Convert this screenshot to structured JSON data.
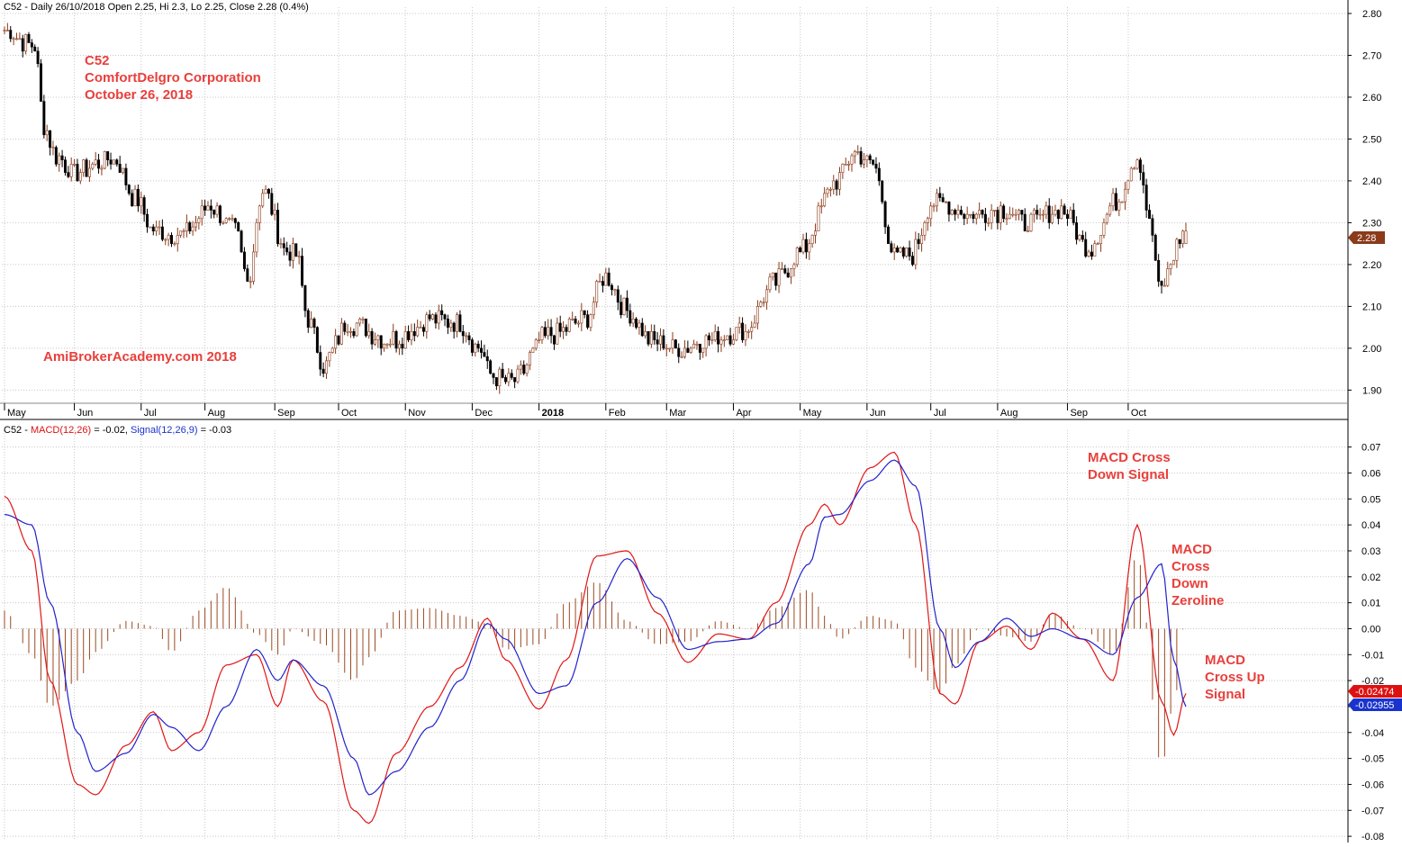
{
  "price_header": {
    "symbol": "C52",
    "text": "C52 - Daily 26/10/2018 Open 2.25, Hi 2.3, Lo 2.25, Close 2.28 (0.4%)"
  },
  "macd_header": {
    "prefix": "C52 - ",
    "macd_label": "MACD(12,26)",
    "macd_value": " = -0.02, ",
    "signal_label": "Signal(12,26,9)",
    "signal_value": " = -0.03"
  },
  "annotations": {
    "title_lines": [
      "C52",
      "ComfortDelgro Corporation",
      "October 26, 2018"
    ],
    "watermark": "AmiBrokerAcademy.com  2018",
    "cross_down_signal": [
      "MACD Cross",
      "Down Signal"
    ],
    "cross_down_zeroline": [
      "MACD",
      "Cross",
      "Down",
      "Zeroline"
    ],
    "cross_up_signal": [
      "MACD",
      "Cross Up",
      "Signal"
    ]
  },
  "price_badge": "2.28",
  "macd_badge": "-0.02474",
  "signal_badge": "-0.02955",
  "colors": {
    "annotation": "#e8403c",
    "macd_line": "#e01515",
    "signal_line": "#2222cc",
    "candle": "#8b3a1a",
    "histogram": "#9b4a22",
    "price_badge_bg": "#8b3a1a",
    "macd_badge_bg": "#dd1111",
    "signal_badge_bg": "#1a33cc"
  },
  "chart_data": [
    {
      "type": "candlestick",
      "title": "C52 - Daily 26/10/2018",
      "x_ticks": [
        "May",
        "Jun",
        "Jul",
        "Aug",
        "Sep",
        "Oct",
        "Nov",
        "Dec",
        "2018",
        "Feb",
        "Mar",
        "Apr",
        "May",
        "Jun",
        "Jul",
        "Aug",
        "Sep",
        "Oct"
      ],
      "y_ticks": [
        "1.90",
        "2.00",
        "2.10",
        "2.20",
        "2.30",
        "2.40",
        "2.50",
        "2.60",
        "2.70",
        "2.80"
      ],
      "ylim": [
        1.875,
        2.815
      ],
      "close_path": {
        "description": "approximate closing price at key dates",
        "points": [
          {
            "date": "2017-05-02",
            "close": 2.76
          },
          {
            "date": "2017-05-10",
            "close": 2.73
          },
          {
            "date": "2017-05-15",
            "close": 2.72
          },
          {
            "date": "2017-05-18",
            "close": 2.53
          },
          {
            "date": "2017-05-24",
            "close": 2.46
          },
          {
            "date": "2017-06-01",
            "close": 2.42
          },
          {
            "date": "2017-06-20",
            "close": 2.45
          },
          {
            "date": "2017-06-30",
            "close": 2.35
          },
          {
            "date": "2017-07-07",
            "close": 2.28
          },
          {
            "date": "2017-07-20",
            "close": 2.27
          },
          {
            "date": "2017-08-03",
            "close": 2.34
          },
          {
            "date": "2017-08-15",
            "close": 2.28
          },
          {
            "date": "2017-08-21",
            "close": 2.16
          },
          {
            "date": "2017-08-28",
            "close": 2.38
          },
          {
            "date": "2017-09-07",
            "close": 2.23
          },
          {
            "date": "2017-09-12",
            "close": 2.22
          },
          {
            "date": "2017-09-18",
            "close": 2.07
          },
          {
            "date": "2017-09-25",
            "close": 1.96
          },
          {
            "date": "2017-10-05",
            "close": 2.06
          },
          {
            "date": "2017-10-25",
            "close": 2.02
          },
          {
            "date": "2017-11-15",
            "close": 2.07
          },
          {
            "date": "2017-11-27",
            "close": 2.06
          },
          {
            "date": "2017-12-05",
            "close": 2.0
          },
          {
            "date": "2017-12-12",
            "close": 1.93
          },
          {
            "date": "2017-12-20",
            "close": 1.92
          },
          {
            "date": "2018-01-05",
            "close": 2.03
          },
          {
            "date": "2018-01-23",
            "close": 2.07
          },
          {
            "date": "2018-02-01",
            "close": 2.17
          },
          {
            "date": "2018-02-12",
            "close": 2.09
          },
          {
            "date": "2018-02-22",
            "close": 2.02
          },
          {
            "date": "2018-03-07",
            "close": 2.0
          },
          {
            "date": "2018-03-20",
            "close": 2.02
          },
          {
            "date": "2018-04-05",
            "close": 2.04
          },
          {
            "date": "2018-04-20",
            "close": 2.16
          },
          {
            "date": "2018-05-02",
            "close": 2.23
          },
          {
            "date": "2018-05-18",
            "close": 2.4
          },
          {
            "date": "2018-05-28",
            "close": 2.47
          },
          {
            "date": "2018-06-05",
            "close": 2.44
          },
          {
            "date": "2018-06-14",
            "close": 2.22
          },
          {
            "date": "2018-06-21",
            "close": 2.22
          },
          {
            "date": "2018-07-03",
            "close": 2.35
          },
          {
            "date": "2018-07-20",
            "close": 2.32
          },
          {
            "date": "2018-08-03",
            "close": 2.33
          },
          {
            "date": "2018-08-15",
            "close": 2.3
          },
          {
            "date": "2018-08-30",
            "close": 2.33
          },
          {
            "date": "2018-09-12",
            "close": 2.24
          },
          {
            "date": "2018-09-25",
            "close": 2.35
          },
          {
            "date": "2018-10-04",
            "close": 2.46
          },
          {
            "date": "2018-10-11",
            "close": 2.27
          },
          {
            "date": "2018-10-15",
            "close": 2.14
          },
          {
            "date": "2018-10-26",
            "close": 2.28
          }
        ]
      },
      "last_bar": {
        "date": "2018-10-26",
        "open": 2.25,
        "high": 2.3,
        "low": 2.25,
        "close": 2.28,
        "change": "0.4%"
      }
    },
    {
      "type": "line",
      "title": "MACD(12,26) = -0.02, Signal(12,26,9) = -0.03",
      "y_ticks": [
        "-0.08",
        "-0.07",
        "-0.06",
        "-0.05",
        "-0.04",
        "-0.03",
        "-0.02",
        "-0.01",
        "0.00",
        "0.01",
        "0.02",
        "0.03",
        "0.04",
        "0.05",
        "0.06",
        "0.07"
      ],
      "ylim": [
        -0.081,
        0.073
      ],
      "series": [
        {
          "name": "MACD(12,26)",
          "color": "#e01515",
          "points": [
            [
              "2017-05-01",
              0.051
            ],
            [
              "2017-05-12",
              0.03
            ],
            [
              "2017-05-22",
              -0.02
            ],
            [
              "2017-06-02",
              -0.06
            ],
            [
              "2017-06-12",
              -0.064
            ],
            [
              "2017-06-26",
              -0.045
            ],
            [
              "2017-07-07",
              -0.032
            ],
            [
              "2017-07-17",
              -0.047
            ],
            [
              "2017-07-28",
              -0.04
            ],
            [
              "2017-08-10",
              -0.014
            ],
            [
              "2017-08-24",
              -0.01
            ],
            [
              "2017-09-04",
              -0.03
            ],
            [
              "2017-09-11",
              -0.012
            ],
            [
              "2017-09-25",
              -0.028
            ],
            [
              "2017-10-09",
              -0.07
            ],
            [
              "2017-10-16",
              -0.075
            ],
            [
              "2017-10-27",
              -0.048
            ],
            [
              "2017-11-13",
              -0.03
            ],
            [
              "2017-11-27",
              -0.015
            ],
            [
              "2017-12-08",
              0.004
            ],
            [
              "2017-12-18",
              -0.012
            ],
            [
              "2018-01-02",
              -0.031
            ],
            [
              "2018-01-15",
              -0.012
            ],
            [
              "2018-01-29",
              0.028
            ],
            [
              "2018-02-12",
              0.03
            ],
            [
              "2018-02-26",
              0.006
            ],
            [
              "2018-03-12",
              -0.013
            ],
            [
              "2018-03-26",
              -0.002
            ],
            [
              "2018-04-09",
              -0.004
            ],
            [
              "2018-04-20",
              0.01
            ],
            [
              "2018-05-07",
              0.04
            ],
            [
              "2018-05-14",
              0.048
            ],
            [
              "2018-05-21",
              0.04
            ],
            [
              "2018-06-04",
              0.062
            ],
            [
              "2018-06-14",
              0.068
            ],
            [
              "2018-06-25",
              0.04
            ],
            [
              "2018-07-05",
              -0.025
            ],
            [
              "2018-07-12",
              -0.029
            ],
            [
              "2018-07-24",
              -0.005
            ],
            [
              "2018-08-06",
              0.001
            ],
            [
              "2018-08-16",
              -0.008
            ],
            [
              "2018-08-27",
              0.006
            ],
            [
              "2018-09-10",
              -0.004
            ],
            [
              "2018-09-24",
              -0.02
            ],
            [
              "2018-10-04",
              0.04
            ],
            [
              "2018-10-16",
              -0.028
            ],
            [
              "2018-10-22",
              -0.041
            ],
            [
              "2018-10-26",
              -0.025
            ]
          ]
        },
        {
          "name": "Signal(12,26,9)",
          "color": "#2222cc",
          "points": [
            [
              "2017-05-01",
              0.044
            ],
            [
              "2017-05-12",
              0.04
            ],
            [
              "2017-05-22",
              0.01
            ],
            [
              "2017-06-02",
              -0.04
            ],
            [
              "2017-06-12",
              -0.055
            ],
            [
              "2017-06-26",
              -0.048
            ],
            [
              "2017-07-07",
              -0.033
            ],
            [
              "2017-07-17",
              -0.038
            ],
            [
              "2017-07-28",
              -0.047
            ],
            [
              "2017-08-10",
              -0.03
            ],
            [
              "2017-08-24",
              -0.008
            ],
            [
              "2017-09-04",
              -0.02
            ],
            [
              "2017-09-11",
              -0.012
            ],
            [
              "2017-09-25",
              -0.022
            ],
            [
              "2017-10-09",
              -0.05
            ],
            [
              "2017-10-16",
              -0.064
            ],
            [
              "2017-10-27",
              -0.055
            ],
            [
              "2017-11-13",
              -0.038
            ],
            [
              "2017-11-27",
              -0.02
            ],
            [
              "2017-12-08",
              0.002
            ],
            [
              "2017-12-18",
              -0.004
            ],
            [
              "2018-01-02",
              -0.025
            ],
            [
              "2018-01-15",
              -0.022
            ],
            [
              "2018-01-29",
              0.01
            ],
            [
              "2018-02-12",
              0.027
            ],
            [
              "2018-02-26",
              0.012
            ],
            [
              "2018-03-12",
              -0.008
            ],
            [
              "2018-03-26",
              -0.005
            ],
            [
              "2018-04-09",
              -0.004
            ],
            [
              "2018-04-20",
              0.002
            ],
            [
              "2018-05-07",
              0.025
            ],
            [
              "2018-05-14",
              0.043
            ],
            [
              "2018-05-21",
              0.044
            ],
            [
              "2018-06-04",
              0.057
            ],
            [
              "2018-06-14",
              0.065
            ],
            [
              "2018-06-25",
              0.055
            ],
            [
              "2018-07-05",
              0.0
            ],
            [
              "2018-07-12",
              -0.015
            ],
            [
              "2018-07-24",
              -0.005
            ],
            [
              "2018-08-06",
              0.004
            ],
            [
              "2018-08-16",
              -0.003
            ],
            [
              "2018-08-27",
              0.0
            ],
            [
              "2018-09-10",
              -0.004
            ],
            [
              "2018-09-24",
              -0.01
            ],
            [
              "2018-10-04",
              0.012
            ],
            [
              "2018-10-16",
              0.025
            ],
            [
              "2018-10-22",
              -0.012
            ],
            [
              "2018-10-26",
              -0.03
            ]
          ]
        },
        {
          "name": "Histogram",
          "type": "bar",
          "color": "#9b4a22",
          "description": "MACD minus Signal plotted as bars around zero"
        }
      ],
      "last_values": {
        "macd": -0.02474,
        "signal": -0.02955
      }
    }
  ]
}
